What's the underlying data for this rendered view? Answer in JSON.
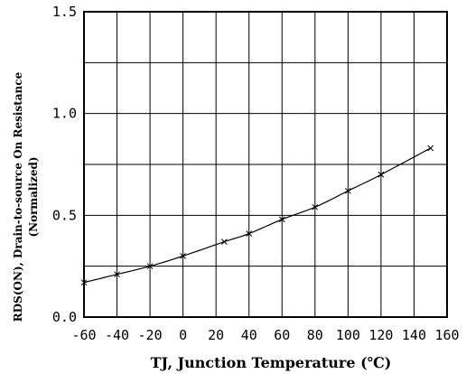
{
  "chart_data": {
    "type": "line",
    "title": "",
    "xlabel": "TJ, Junction Temperature (℃)",
    "ylabel_line1": "RDS(ON), Drain-to-source On Resistance",
    "ylabel_line2": "(Normalized)",
    "xlim": [
      -60,
      160
    ],
    "ylim": [
      0,
      1.5
    ],
    "x_ticks": [
      -60,
      -40,
      -20,
      0,
      20,
      40,
      60,
      80,
      100,
      120,
      140,
      160
    ],
    "x_tick_labels": [
      "-60",
      "-40",
      "-20",
      "0",
      "20",
      "40",
      "60",
      "80",
      "100",
      "120",
      "140",
      "160"
    ],
    "y_ticks": [
      0,
      0.25,
      0.5,
      0.75,
      1.0,
      1.25,
      1.5
    ],
    "y_tick_labels": [
      "0.0",
      "",
      "0.5",
      "",
      "1.0",
      "",
      "1.5"
    ],
    "grid": true,
    "legend": "none",
    "line_color": "#000000",
    "series": [
      {
        "x": [
          -60,
          -40,
          -20,
          0,
          25,
          40,
          60,
          80,
          100,
          120,
          150
        ],
        "y": [
          0.17,
          0.21,
          0.25,
          0.3,
          0.37,
          0.41,
          0.48,
          0.54,
          0.62,
          0.7,
          0.83
        ]
      }
    ]
  }
}
